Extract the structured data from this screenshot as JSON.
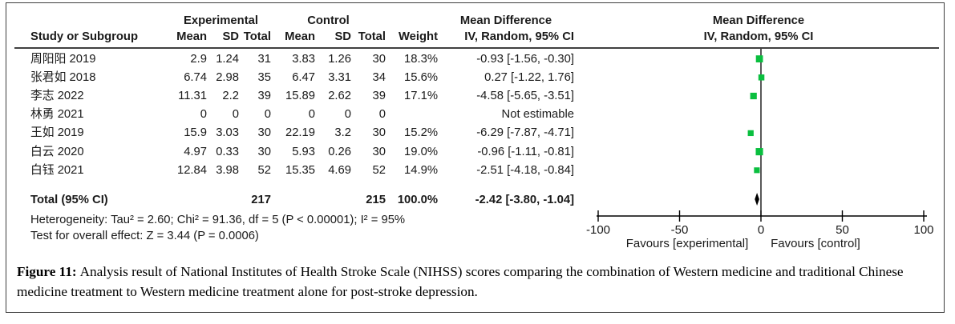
{
  "colors": {
    "square_green": "#0abf3f",
    "diamond_black": "#000000",
    "line_black": "#000000"
  },
  "forest": {
    "group_headers": {
      "experimental": "Experimental",
      "control": "Control",
      "effect": "Mean Difference"
    },
    "col_headers": {
      "study": "Study or Subgroup",
      "mean": "Mean",
      "sd": "SD",
      "total": "Total",
      "weight": "Weight",
      "method": "IV, Random, 95% CI"
    },
    "studies": [
      {
        "name": "周阳阳 2019",
        "e_mean": "2.9",
        "e_sd": "1.24",
        "e_total": "31",
        "c_mean": "3.83",
        "c_sd": "1.26",
        "c_total": "30",
        "weight": "18.3%",
        "ci": "-0.93 [-1.56, -0.30]"
      },
      {
        "name": "张君如 2018",
        "e_mean": "6.74",
        "e_sd": "2.98",
        "e_total": "35",
        "c_mean": "6.47",
        "c_sd": "3.31",
        "c_total": "34",
        "weight": "15.6%",
        "ci": "0.27 [-1.22, 1.76]"
      },
      {
        "name": "李志 2022",
        "e_mean": "11.31",
        "e_sd": "2.2",
        "e_total": "39",
        "c_mean": "15.89",
        "c_sd": "2.62",
        "c_total": "39",
        "weight": "17.1%",
        "ci": "-4.58 [-5.65, -3.51]"
      },
      {
        "name": "林勇 2021",
        "e_mean": "0",
        "e_sd": "0",
        "e_total": "0",
        "c_mean": "0",
        "c_sd": "0",
        "c_total": "0",
        "weight": "",
        "ci": "Not estimable"
      },
      {
        "name": "王如 2019",
        "e_mean": "15.9",
        "e_sd": "3.03",
        "e_total": "30",
        "c_mean": "22.19",
        "c_sd": "3.2",
        "c_total": "30",
        "weight": "15.2%",
        "ci": "-6.29 [-7.87, -4.71]"
      },
      {
        "name": "白云 2020",
        "e_mean": "4.97",
        "e_sd": "0.33",
        "e_total": "30",
        "c_mean": "5.93",
        "c_sd": "0.26",
        "c_total": "30",
        "weight": "19.0%",
        "ci": "-0.96 [-1.11, -0.81]"
      },
      {
        "name": "白钰 2021",
        "e_mean": "12.84",
        "e_sd": "3.98",
        "e_total": "52",
        "c_mean": "15.35",
        "c_sd": "4.69",
        "c_total": "52",
        "weight": "14.9%",
        "ci": "-2.51 [-4.18, -0.84]"
      }
    ],
    "total_row": {
      "label": "Total (95% CI)",
      "e_total": "217",
      "c_total": "215",
      "weight": "100.0%",
      "ci": "-2.42 [-3.80, -1.04]"
    },
    "footnotes": {
      "heterogeneity": "Heterogeneity: Tau² = 2.60; Chi² = 91.36, df = 5 (P < 0.00001); I² = 95%",
      "overall": "Test for overall effect: Z = 3.44 (P = 0.0006)"
    },
    "axis": {
      "min": -100,
      "max": 100,
      "ticks": [
        -100,
        -50,
        0,
        50,
        100
      ],
      "favours_left": "Favours [experimental]",
      "favours_right": "Favours [control]"
    }
  },
  "caption": {
    "label": "Figure 11:",
    "text": "Analysis result of National Institutes of Health Stroke Scale (NIHSS) scores comparing the combination of Western medicine and traditional Chinese medicine treatment to Western medicine treatment alone for post-stroke depression."
  },
  "chart_data": {
    "type": "scatter",
    "subtype": "forest_plot",
    "title": "Mean Difference — IV, Random, 95% CI",
    "xlabel": "Mean Difference",
    "xlim": [
      -100,
      100
    ],
    "x_ticks": [
      -100,
      -50,
      0,
      50,
      100
    ],
    "grid": false,
    "marker_color": "#0abf3f",
    "studies": [
      {
        "study": "周阳阳 2019",
        "exp_mean": 2.9,
        "exp_sd": 1.24,
        "exp_total": 31,
        "ctl_mean": 3.83,
        "ctl_sd": 1.26,
        "ctl_total": 30,
        "weight_pct": 18.3,
        "md": -0.93,
        "ci_low": -1.56,
        "ci_high": -0.3
      },
      {
        "study": "张君如 2018",
        "exp_mean": 6.74,
        "exp_sd": 2.98,
        "exp_total": 35,
        "ctl_mean": 6.47,
        "ctl_sd": 3.31,
        "ctl_total": 34,
        "weight_pct": 15.6,
        "md": 0.27,
        "ci_low": -1.22,
        "ci_high": 1.76
      },
      {
        "study": "李志 2022",
        "exp_mean": 11.31,
        "exp_sd": 2.2,
        "exp_total": 39,
        "ctl_mean": 15.89,
        "ctl_sd": 2.62,
        "ctl_total": 39,
        "weight_pct": 17.1,
        "md": -4.58,
        "ci_low": -5.65,
        "ci_high": -3.51
      },
      {
        "study": "林勇 2021",
        "exp_mean": 0,
        "exp_sd": 0,
        "exp_total": 0,
        "ctl_mean": 0,
        "ctl_sd": 0,
        "ctl_total": 0,
        "weight_pct": null,
        "md": null,
        "ci_low": null,
        "ci_high": null,
        "note": "Not estimable"
      },
      {
        "study": "王如 2019",
        "exp_mean": 15.9,
        "exp_sd": 3.03,
        "exp_total": 30,
        "ctl_mean": 22.19,
        "ctl_sd": 3.2,
        "ctl_total": 30,
        "weight_pct": 15.2,
        "md": -6.29,
        "ci_low": -7.87,
        "ci_high": -4.71
      },
      {
        "study": "白云 2020",
        "exp_mean": 4.97,
        "exp_sd": 0.33,
        "exp_total": 30,
        "ctl_mean": 5.93,
        "ctl_sd": 0.26,
        "ctl_total": 30,
        "weight_pct": 19.0,
        "md": -0.96,
        "ci_low": -1.11,
        "ci_high": -0.81
      },
      {
        "study": "白钰 2021",
        "exp_mean": 12.84,
        "exp_sd": 3.98,
        "exp_total": 52,
        "ctl_mean": 15.35,
        "ctl_sd": 4.69,
        "ctl_total": 52,
        "weight_pct": 14.9,
        "md": -2.51,
        "ci_low": -4.18,
        "ci_high": -0.84
      }
    ],
    "total": {
      "exp_total": 217,
      "ctl_total": 215,
      "weight_pct": 100.0,
      "md": -2.42,
      "ci_low": -3.8,
      "ci_high": -1.04
    },
    "heterogeneity": {
      "tau2": 2.6,
      "chi2": 91.36,
      "df": 5,
      "p": "< 0.00001",
      "i2_pct": 95
    },
    "overall_effect": {
      "z": 3.44,
      "p": 0.0006
    }
  }
}
